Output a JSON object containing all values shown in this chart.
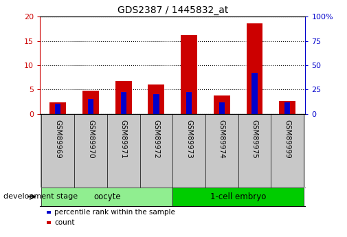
{
  "title": "GDS2387 / 1445832_at",
  "samples": [
    "GSM89969",
    "GSM89970",
    "GSM89971",
    "GSM89972",
    "GSM89973",
    "GSM89974",
    "GSM89975",
    "GSM89999"
  ],
  "count_values": [
    2.3,
    4.8,
    6.7,
    6.0,
    16.2,
    3.8,
    18.6,
    2.6
  ],
  "percentile_values": [
    10,
    15,
    22,
    20,
    22,
    12,
    42,
    12
  ],
  "groups": [
    {
      "label": "oocyte",
      "start": 0,
      "end": 4,
      "color": "#90EE90"
    },
    {
      "label": "1-cell embryo",
      "start": 4,
      "end": 8,
      "color": "#00CC00"
    }
  ],
  "group_label": "development stage",
  "ylim_left": [
    0,
    20
  ],
  "ylim_right": [
    0,
    100
  ],
  "yticks_left": [
    0,
    5,
    10,
    15,
    20
  ],
  "yticks_right": [
    0,
    25,
    50,
    75,
    100
  ],
  "left_tick_color": "#CC0000",
  "right_tick_color": "#0000CC",
  "bar_color_count": "#CC0000",
  "bar_color_percentile": "#0000CC",
  "bar_width": 0.5,
  "xlabel_area_color": "#C8C8C8",
  "legend_count_label": "count",
  "legend_percentile_label": "percentile rank within the sample"
}
